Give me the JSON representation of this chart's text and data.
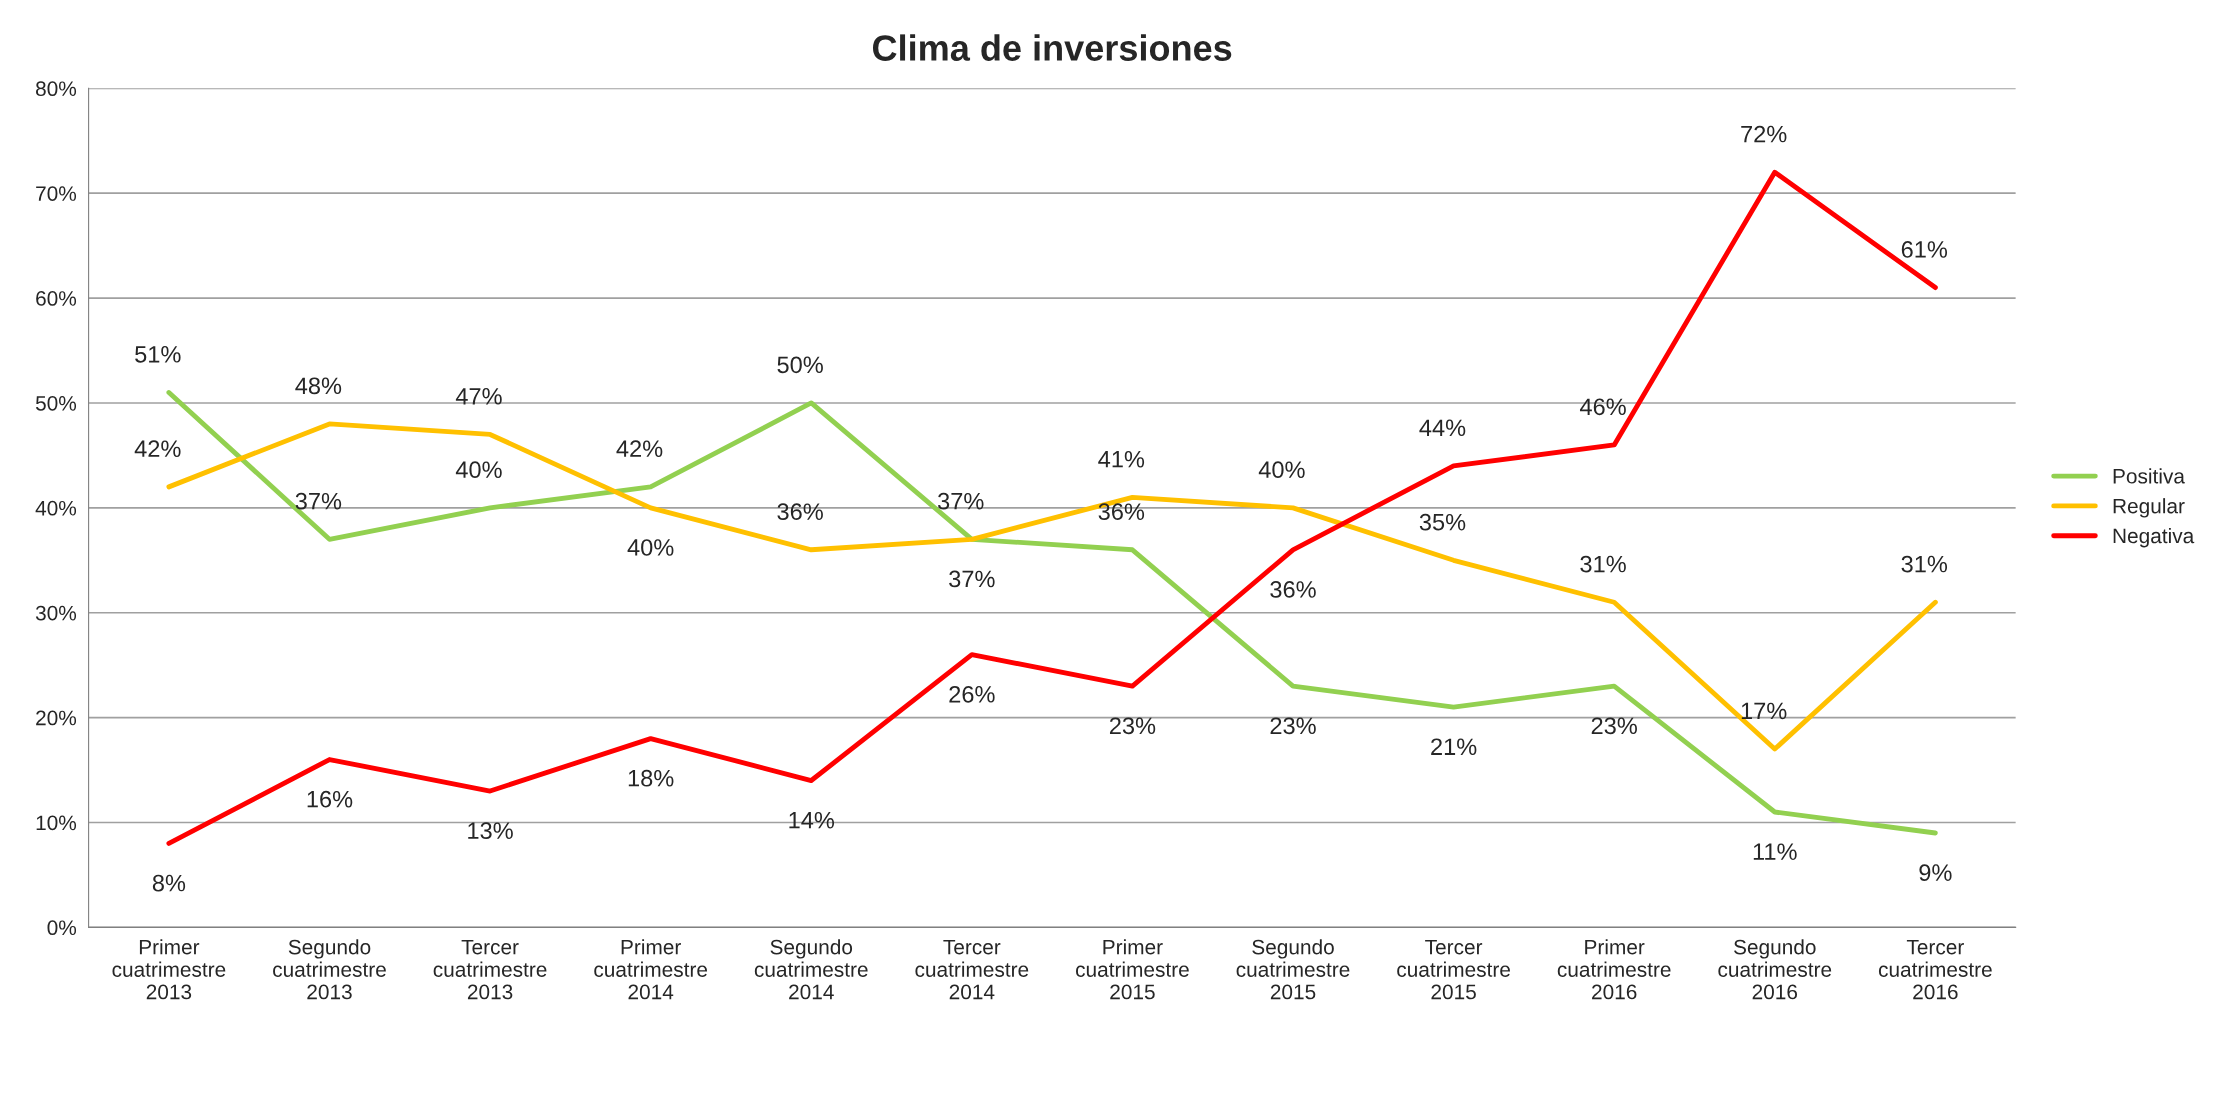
{
  "chart_data": {
    "type": "line",
    "title": "Clima de inversiones",
    "categories": [
      "Primer\ncuatrimestre\n2013",
      "Segundo\ncuatrimestre\n2013",
      "Tercer\ncuatrimestre\n2013",
      "Primer\ncuatrimestre\n2014",
      "Segundo\ncuatrimestre\n2014",
      "Tercer\ncuatrimestre\n2014",
      "Primer\ncuatrimestre\n2015",
      "Segundo\ncuatrimestre\n2015",
      "Tercer\ncuatrimestre\n2015",
      "Primer\ncuatrimestre\n2016",
      "Segundo\ncuatrimestre\n2016",
      "Tercer\ncuatrimestre\n2016"
    ],
    "series": [
      {
        "name": "Positiva",
        "color": "#92d050",
        "values": [
          51,
          37,
          40,
          42,
          50,
          37,
          36,
          23,
          21,
          23,
          11,
          9
        ],
        "value_labels": [
          "51%",
          "37%",
          "40%",
          "42%",
          "50%",
          "37%",
          "36%",
          "23%",
          "21%",
          "23%",
          "11%",
          "9%"
        ]
      },
      {
        "name": "Regular",
        "color": "#ffc000",
        "values": [
          42,
          48,
          47,
          40,
          36,
          37,
          41,
          40,
          35,
          31,
          17,
          31
        ],
        "value_labels": [
          "42%",
          "48%",
          "47%",
          "40%",
          "36%",
          "37%",
          "41%",
          "40%",
          "35%",
          "31%",
          "17%",
          "31%"
        ]
      },
      {
        "name": "Negativa",
        "color": "#ff0000",
        "values": [
          8,
          16,
          13,
          18,
          14,
          26,
          23,
          36,
          44,
          46,
          72,
          61
        ],
        "value_labels": [
          "8%",
          "16%",
          "13%",
          "18%",
          "14%",
          "26%",
          "23%",
          "36%",
          "44%",
          "46%",
          "72%",
          "61%"
        ]
      }
    ],
    "ylim": [
      0,
      80
    ],
    "yticks": [
      {
        "value": 0,
        "label": "0%"
      },
      {
        "value": 10,
        "label": "10%"
      },
      {
        "value": 20,
        "label": "20%"
      },
      {
        "value": 30,
        "label": "30%"
      },
      {
        "value": 40,
        "label": "40%"
      },
      {
        "value": 50,
        "label": "50%"
      },
      {
        "value": 60,
        "label": "60%"
      },
      {
        "value": 70,
        "label": "70%"
      },
      {
        "value": 80,
        "label": "80%"
      }
    ],
    "grid": "y",
    "legend": "right",
    "marker": "none",
    "line_style": "solid"
  }
}
